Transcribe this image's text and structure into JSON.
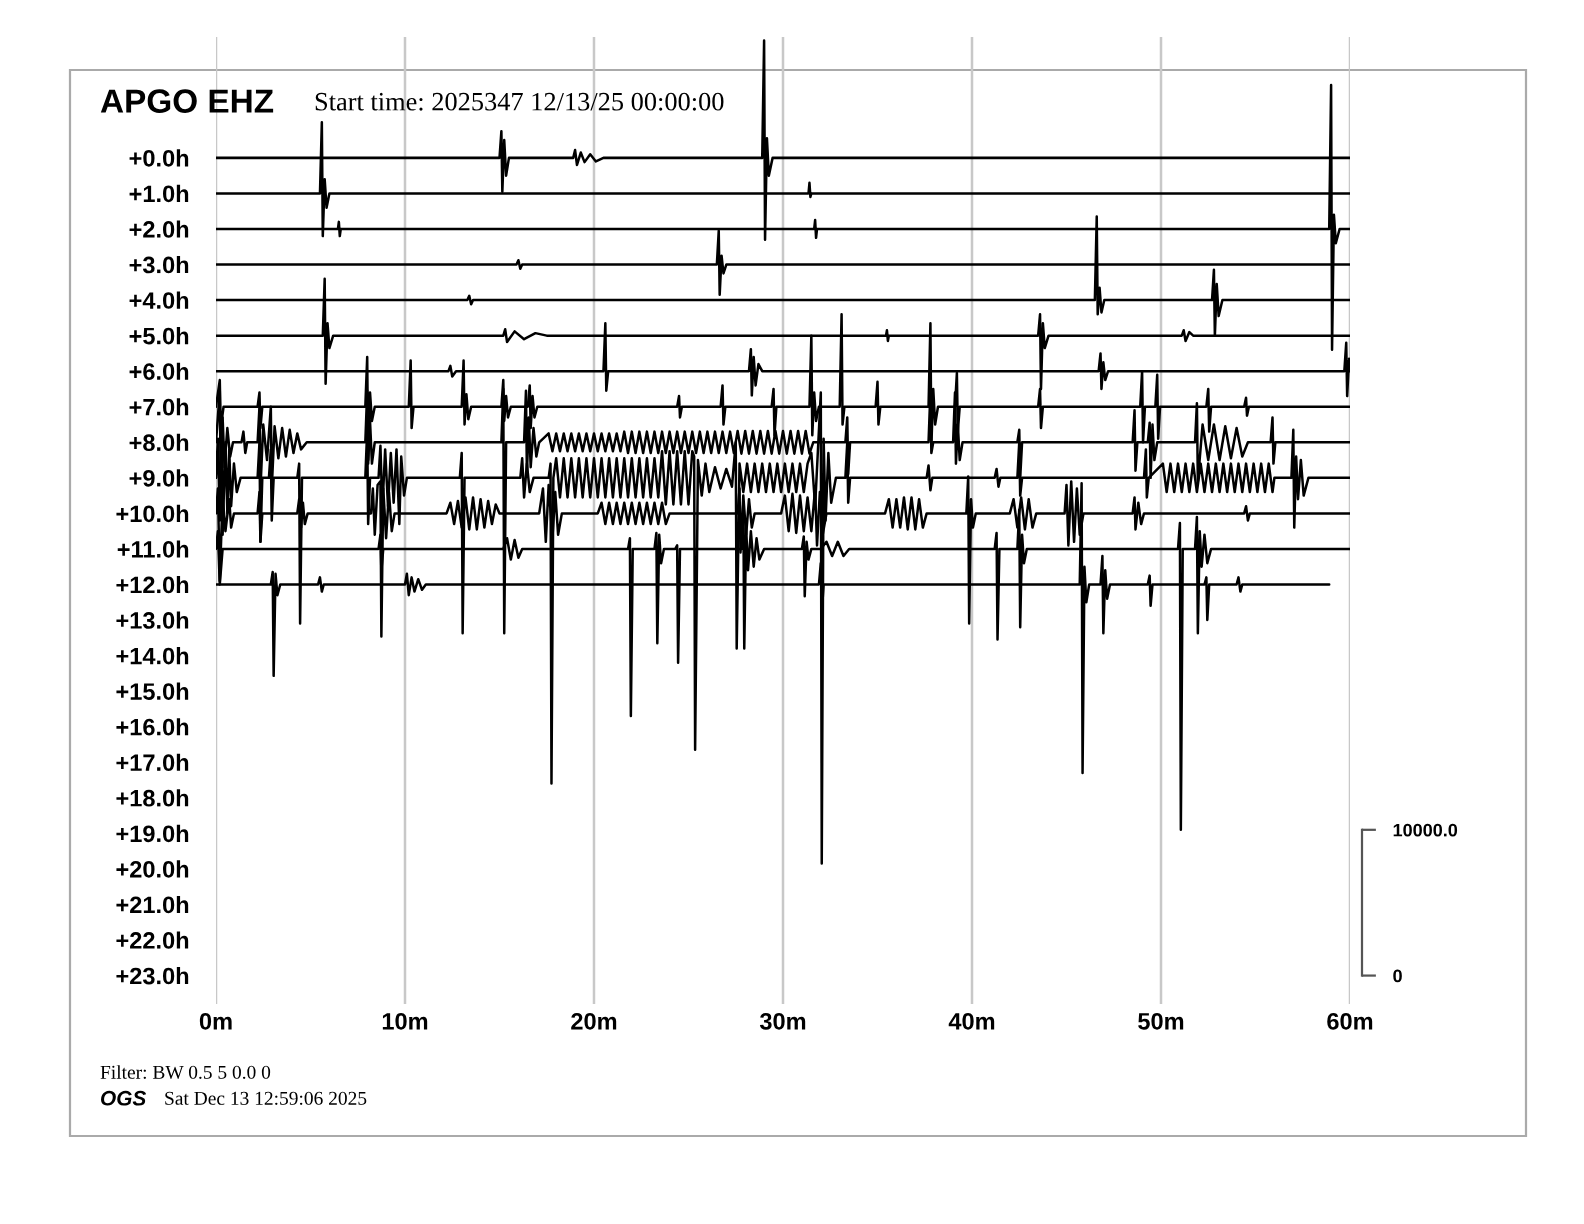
{
  "chart_data": {
    "type": "line",
    "title": "APGO EHZ",
    "subtitle": "Start time: 2025347 12/13/25 00:00:00",
    "annotations": [
      "Filter: BW 0.5 5 0.0 0",
      "OGS",
      "Sat Dec 13 12:59:06 2025"
    ],
    "xlim": [
      0,
      60
    ],
    "xticks": [
      {
        "value": 0,
        "label": "0m"
      },
      {
        "value": 10,
        "label": "10m"
      },
      {
        "value": 20,
        "label": "20m"
      },
      {
        "value": 30,
        "label": "30m"
      },
      {
        "value": 40,
        "label": "40m"
      },
      {
        "value": 50,
        "label": "50m"
      },
      {
        "value": 60,
        "label": "60m"
      }
    ],
    "ylim": [
      23.8,
      -3.4
    ],
    "yticks": [
      {
        "value": 0,
        "label": "+0.0h"
      },
      {
        "value": 1,
        "label": "+1.0h"
      },
      {
        "value": 2,
        "label": "+2.0h"
      },
      {
        "value": 3,
        "label": "+3.0h"
      },
      {
        "value": 4,
        "label": "+4.0h"
      },
      {
        "value": 5,
        "label": "+5.0h"
      },
      {
        "value": 6,
        "label": "+6.0h"
      },
      {
        "value": 7,
        "label": "+7.0h"
      },
      {
        "value": 8,
        "label": "+8.0h"
      },
      {
        "value": 9,
        "label": "+9.0h"
      },
      {
        "value": 10,
        "label": "+10.0h"
      },
      {
        "value": 11,
        "label": "+11.0h"
      },
      {
        "value": 12,
        "label": "+12.0h"
      },
      {
        "value": 13,
        "label": "+13.0h"
      },
      {
        "value": 14,
        "label": "+14.0h"
      },
      {
        "value": 15,
        "label": "+15.0h"
      },
      {
        "value": 16,
        "label": "+16.0h"
      },
      {
        "value": 17,
        "label": "+17.0h"
      },
      {
        "value": 18,
        "label": "+18.0h"
      },
      {
        "value": 19,
        "label": "+19.0h"
      },
      {
        "value": 20,
        "label": "+20.0h"
      },
      {
        "value": 21,
        "label": "+21.0h"
      },
      {
        "value": 22,
        "label": "+22.0h"
      },
      {
        "value": 23,
        "label": "+23.0h"
      }
    ],
    "y2lim": [
      -1950,
      64390
    ],
    "y2ticks": [
      0,
      {
        "value": 10000,
        "label": "10000.0"
      }
    ],
    "grid": "x",
    "series": [
      {
        "color": "#000000",
        "x": [
          0,
          15.0,
          15.1,
          15.15,
          15.25,
          15.35,
          15.5,
          18.9,
          19.0,
          19.1,
          19.3,
          19.5,
          19.8,
          20.1,
          20.5,
          28.9,
          29.0,
          29.05,
          29.15,
          29.25,
          29.45,
          60
        ],
        "values": [
          0,
          0,
          -0.75,
          0.95,
          -0.5,
          0.5,
          0,
          0,
          -0.22,
          0.2,
          -0.15,
          0.12,
          -0.1,
          0.1,
          0,
          0,
          -3.3,
          2.3,
          -0.55,
          0.5,
          0,
          0
        ]
      },
      {
        "color": "#000000",
        "x": [
          0,
          5.5,
          5.6,
          5.65,
          5.75,
          5.85,
          6.0,
          31.35,
          31.4,
          31.45,
          31.5,
          60
        ],
        "values": [
          1,
          1,
          -1.0,
          2.2,
          0.6,
          1.4,
          1,
          1,
          0.7,
          1.1,
          1,
          1
        ]
      },
      {
        "color": "#000000",
        "x": [
          0,
          6.45,
          6.5,
          6.55,
          6.6,
          31.65,
          31.7,
          31.75,
          31.8,
          58.9,
          59.0,
          59.05,
          59.15,
          59.25,
          59.45,
          60
        ],
        "values": [
          2,
          2,
          1.8,
          2.2,
          2,
          2,
          1.75,
          2.25,
          2,
          2,
          -2.05,
          5.4,
          1.6,
          2.4,
          2,
          2
        ]
      },
      {
        "color": "#000000",
        "x": [
          0,
          15.9,
          16.0,
          16.1,
          16.2,
          26.5,
          26.6,
          26.65,
          26.75,
          26.85,
          27.0,
          60
        ],
        "values": [
          3,
          3,
          2.88,
          3.12,
          3,
          3,
          2.05,
          3.85,
          2.75,
          3.25,
          3,
          3
        ]
      },
      {
        "color": "#000000",
        "x": [
          0,
          13.3,
          13.4,
          13.5,
          13.6,
          46.5,
          46.6,
          46.65,
          46.75,
          46.85,
          47.0,
          52.7,
          52.8,
          52.85,
          52.95,
          53.05,
          53.25,
          60
        ],
        "values": [
          4,
          4,
          3.88,
          4.12,
          4,
          4,
          1.65,
          4.4,
          3.65,
          4.35,
          4,
          4,
          3.15,
          5.0,
          3.55,
          4.45,
          4,
          4
        ]
      },
      {
        "color": "#000000",
        "x": [
          0,
          5.65,
          5.75,
          5.8,
          5.9,
          6.0,
          6.2,
          15.2,
          15.3,
          15.4,
          15.8,
          16.3,
          16.9,
          17.5,
          35.45,
          35.5,
          35.55,
          35.6,
          43.5,
          43.6,
          43.65,
          43.75,
          43.85,
          44.05,
          51.1,
          51.2,
          51.3,
          51.5,
          51.7,
          60
        ],
        "values": [
          5,
          5,
          3.4,
          6.35,
          4.65,
          5.35,
          5,
          5,
          4.82,
          5.18,
          4.88,
          5.1,
          4.93,
          5,
          5,
          4.85,
          5.15,
          5,
          5,
          4.4,
          6.5,
          4.65,
          5.35,
          5,
          5,
          4.85,
          5.15,
          4.9,
          5,
          5
        ]
      },
      {
        "color": "#000000",
        "x": [
          0,
          12.3,
          12.4,
          12.5,
          12.7,
          20.5,
          20.6,
          20.65,
          20.75,
          28.2,
          28.3,
          28.35,
          28.45,
          28.55,
          28.7,
          28.9,
          46.7,
          46.8,
          46.85,
          46.95,
          47.05,
          47.2,
          59.7,
          59.8,
          59.85,
          59.95,
          60
        ],
        "values": [
          6,
          6,
          5.85,
          6.15,
          6,
          6,
          4.65,
          6.55,
          6,
          6,
          5.38,
          6.68,
          5.6,
          6.4,
          5.8,
          6,
          6,
          5.5,
          6.5,
          5.75,
          6.25,
          6,
          6,
          5.2,
          6.7,
          5.65,
          6
        ]
      },
      {
        "color": "#000000",
        "x": [
          0,
          0.2,
          0.25,
          0.4,
          2.2,
          2.3,
          2.35,
          2.45,
          7.9,
          8.0,
          8.05,
          8.15,
          8.25,
          8.4,
          10.2,
          10.3,
          10.35,
          10.45,
          13.0,
          13.1,
          13.15,
          13.25,
          13.35,
          13.5,
          15.1,
          15.2,
          15.25,
          15.35,
          15.45,
          15.6,
          16.5,
          16.6,
          16.65,
          16.75,
          16.85,
          17.0,
          24.4,
          24.5,
          24.55,
          24.65,
          26.7,
          26.8,
          26.85,
          26.95,
          29.4,
          29.5,
          29.55,
          29.65,
          31.4,
          31.5,
          31.55,
          31.65,
          31.75,
          31.9,
          33.0,
          33.1,
          33.15,
          33.25,
          34.9,
          35.0,
          35.05,
          35.15,
          37.7,
          37.8,
          37.85,
          37.95,
          38.05,
          38.2,
          39.1,
          39.2,
          39.25,
          39.35,
          43.5,
          43.6,
          43.65,
          43.75,
          48.9,
          49.0,
          49.05,
          49.15,
          49.7,
          49.8,
          49.85,
          49.95,
          52.4,
          52.5,
          52.55,
          52.65,
          54.4,
          54.5,
          54.55,
          54.65,
          60
        ],
        "values": [
          7,
          6.25,
          7.6,
          7,
          7,
          6.6,
          7.6,
          7,
          7,
          5.6,
          8.5,
          6.6,
          7.4,
          7,
          7,
          5.7,
          7.6,
          7,
          7,
          5.7,
          7.5,
          6.65,
          7.35,
          7,
          7,
          6.25,
          7.4,
          6.7,
          7.3,
          7,
          7,
          6.4,
          7.6,
          6.7,
          7.3,
          7,
          7,
          6.7,
          7.3,
          7,
          7,
          6.4,
          7.5,
          7,
          7,
          6.5,
          7.8,
          7,
          7,
          5.0,
          7.8,
          6.6,
          7.4,
          7,
          7,
          4.4,
          7.5,
          7,
          7,
          6.3,
          7.5,
          7,
          7,
          4.65,
          8.1,
          6.5,
          7.5,
          7,
          7,
          6.05,
          7.7,
          7,
          7,
          6.5,
          7.6,
          7,
          7,
          6.0,
          8.0,
          7,
          7,
          6.1,
          7.9,
          7,
          7,
          6.5,
          7.7,
          7,
          7,
          6.75,
          7.25,
          7,
          7
        ]
      },
      {
        "color": "#000000",
        "x": [
          0,
          0.2,
          0.25,
          0.35,
          0.45,
          0.6,
          0.75,
          0.9,
          1.35,
          1.45,
          1.55,
          1.65,
          2.2,
          2.3,
          2.35,
          2.5,
          2.7,
          2.9,
          2.95,
          3.1,
          3.3,
          3.5,
          3.7,
          3.9,
          4.1,
          4.3,
          4.5,
          4.8,
          7.9,
          8.0,
          8.05,
          8.15,
          8.25,
          8.4,
          15.1,
          15.2,
          15.25,
          15.35,
          16.3,
          16.4,
          16.45,
          16.55,
          16.65,
          16.8,
          16.95,
          17.1,
          17.6,
          17.8,
          18.0,
          18.2,
          18.4,
          18.6,
          18.8,
          19.0,
          19.2,
          19.4,
          19.6,
          19.8,
          20.0,
          20.2,
          20.4,
          20.6,
          20.8,
          21.0,
          21.2,
          21.4,
          21.6,
          21.8,
          22.0,
          22.2,
          22.4,
          22.6,
          22.8,
          23.0,
          23.2,
          23.4,
          23.6,
          23.8,
          24.0,
          24.2,
          24.4,
          24.6,
          24.8,
          25.0,
          25.2,
          25.4,
          25.6,
          25.8,
          26.0,
          26.2,
          26.4,
          26.6,
          26.8,
          27.0,
          27.2,
          27.4,
          27.6,
          27.8,
          28.0,
          28.2,
          28.4,
          28.6,
          28.8,
          29.0,
          29.2,
          29.4,
          29.6,
          29.8,
          30.0,
          30.2,
          30.4,
          30.6,
          30.8,
          31.0,
          31.2,
          31.4,
          31.6,
          33.3,
          33.4,
          33.45,
          33.55,
          37.7,
          37.8,
          37.85,
          37.95,
          39.0,
          39.1,
          39.15,
          39.25,
          39.35,
          39.5,
          42.4,
          42.5,
          42.55,
          42.65,
          48.5,
          48.6,
          48.65,
          48.75,
          49.3,
          49.4,
          49.45,
          49.55,
          49.65,
          49.8,
          51.8,
          51.9,
          51.95,
          52.2,
          52.5,
          52.8,
          53.1,
          53.4,
          53.7,
          54.0,
          54.3,
          54.6,
          55.8,
          55.9,
          55.95,
          56.05,
          60
        ],
        "values": [
          8,
          6.55,
          9.3,
          7.3,
          8.7,
          7.6,
          8.4,
          8,
          8,
          7.7,
          8.3,
          8,
          8,
          7.0,
          9.35,
          7.5,
          8.5,
          7.0,
          9.3,
          7.55,
          8.45,
          7.6,
          8.4,
          7.65,
          8.3,
          7.75,
          8.2,
          8,
          8,
          6.55,
          8.6,
          7.4,
          8.6,
          8,
          8,
          6.5,
          13.37,
          8,
          8,
          6.55,
          8.9,
          7.3,
          8.7,
          7.6,
          8.4,
          8,
          7.75,
          8.25,
          7.75,
          8.25,
          7.75,
          8.25,
          7.75,
          8.25,
          7.75,
          8.25,
          7.75,
          8.25,
          7.75,
          8.25,
          7.75,
          8.25,
          7.75,
          8.25,
          7.75,
          8.25,
          7.7,
          8.3,
          7.7,
          8.3,
          7.7,
          8.3,
          7.7,
          8.3,
          7.7,
          8.3,
          7.7,
          8.3,
          7.7,
          8.3,
          7.7,
          8.3,
          7.7,
          8.3,
          7.7,
          8.3,
          7.7,
          8.3,
          7.7,
          8.3,
          7.7,
          8.3,
          7.7,
          8.3,
          7.7,
          8.3,
          7.68,
          8.32,
          7.68,
          8.32,
          7.68,
          8.32,
          7.68,
          8.32,
          7.68,
          8.32,
          7.68,
          8.32,
          7.68,
          8.32,
          7.68,
          8.32,
          7.68,
          8.32,
          7.68,
          8.32,
          8,
          8,
          7.3,
          8.9,
          8,
          8,
          6.55,
          8.3,
          8,
          8,
          6.6,
          8.6,
          7.5,
          8.5,
          8,
          8,
          7.65,
          9.0,
          8,
          8,
          7.1,
          8.8,
          8,
          8,
          7.45,
          9.0,
          7.5,
          8.5,
          8,
          8,
          6.9,
          9.1,
          7.5,
          8.5,
          7.5,
          8.5,
          7.55,
          8.45,
          7.6,
          8.4,
          8,
          8,
          7.3,
          8.6,
          8,
          8
        ]
      },
      {
        "color": "#000000",
        "x": [
          0,
          0.1,
          0.2,
          0.3,
          0.35,
          0.5,
          0.6,
          0.7,
          0.8,
          0.95,
          1.1,
          1.3,
          2.2,
          2.3,
          2.35,
          2.45,
          2.8,
          2.9,
          2.95,
          3.05,
          4.3,
          4.4,
          4.45,
          4.55,
          7.9,
          8.0,
          8.05,
          8.15,
          8.6,
          8.7,
          8.8,
          8.95,
          9.1,
          9.25,
          9.4,
          9.55,
          9.7,
          9.8,
          9.95,
          10.1,
          12.9,
          13.0,
          13.05,
          13.15,
          16.1,
          16.2,
          16.3,
          16.45,
          16.6,
          16.8,
          17.6,
          17.7,
          17.75,
          17.85,
          18.0,
          18.2,
          18.4,
          18.6,
          18.8,
          19.0,
          19.2,
          19.4,
          19.6,
          19.8,
          20.0,
          20.2,
          20.4,
          20.6,
          20.8,
          21.0,
          21.2,
          21.4,
          21.6,
          21.8,
          22.0,
          22.2,
          22.4,
          22.6,
          22.8,
          23.0,
          23.2,
          23.4,
          23.6,
          23.8,
          24.0,
          24.2,
          24.4,
          24.6,
          24.8,
          25.0,
          25.2,
          25.3,
          25.35,
          25.5,
          25.7,
          25.9,
          26.1,
          26.4,
          26.7,
          27.0,
          27.3,
          27.5,
          27.55,
          27.7,
          27.9,
          28.1,
          28.3,
          28.5,
          28.7,
          28.9,
          29.1,
          29.3,
          29.5,
          29.7,
          29.9,
          30.1,
          30.3,
          30.5,
          30.7,
          30.9,
          31.1,
          31.3,
          31.5,
          31.7,
          32.0,
          32.05,
          32.15,
          32.25,
          32.4,
          32.55,
          32.8,
          33.3,
          33.4,
          33.45,
          33.55,
          37.6,
          37.7,
          37.8,
          37.9,
          41.2,
          41.3,
          41.4,
          41.5,
          42.4,
          42.5,
          42.55,
          42.65,
          49.1,
          49.2,
          49.25,
          49.35,
          50.1,
          50.3,
          50.5,
          50.7,
          50.9,
          51.1,
          51.3,
          51.5,
          51.7,
          51.9,
          52.1,
          52.3,
          52.5,
          52.7,
          52.9,
          53.1,
          53.3,
          53.5,
          53.7,
          53.9,
          54.1,
          54.3,
          54.5,
          54.7,
          54.9,
          55.1,
          55.3,
          55.5,
          55.7,
          55.9,
          56.0,
          56.9,
          57.0,
          57.05,
          57.15,
          57.25,
          57.4,
          57.55,
          57.8,
          60
        ],
        "values": [
          9,
          7.9,
          10.2,
          7.6,
          10.6,
          8.0,
          10.0,
          8.2,
          9.8,
          8.6,
          9.4,
          9,
          9,
          8.0,
          10.8,
          9,
          9,
          8.2,
          10.2,
          9,
          9,
          8.6,
          13.1,
          9,
          9,
          7.65,
          10.3,
          9,
          9,
          8.1,
          9.9,
          8.2,
          9.8,
          8.3,
          9.7,
          8.2,
          10.3,
          8.4,
          9.5,
          9,
          9,
          8.3,
          13.37,
          9,
          9,
          8.45,
          9.55,
          8.6,
          9.4,
          9,
          9,
          8.6,
          17.6,
          9,
          8.45,
          9.55,
          8.45,
          9.55,
          8.45,
          9.55,
          8.45,
          9.55,
          8.45,
          9.55,
          8.45,
          9.55,
          8.45,
          9.55,
          8.45,
          9.55,
          8.45,
          9.55,
          8.45,
          9.55,
          8.45,
          9.55,
          8.45,
          9.55,
          8.45,
          9.55,
          8.45,
          9.55,
          8.25,
          9.75,
          8.25,
          9.75,
          8.25,
          9.75,
          8.25,
          9.75,
          8.25,
          8.4,
          16.65,
          8.5,
          9.5,
          8.6,
          9.4,
          8.7,
          9.3,
          8.75,
          9.25,
          8.0,
          13.8,
          8.6,
          9.4,
          8.6,
          9.4,
          8.6,
          9.4,
          8.6,
          9.4,
          8.6,
          9.4,
          8.6,
          9.4,
          8.6,
          9.4,
          8.6,
          9.4,
          8.6,
          9.4,
          8.6,
          8.3,
          9.8,
          6.6,
          19.85,
          7.9,
          10.2,
          8.3,
          9.7,
          9,
          9,
          8.0,
          9.7,
          9,
          9,
          8.65,
          9.35,
          9,
          9,
          8.75,
          9.25,
          9,
          9,
          8.0,
          9.5,
          9,
          9,
          8.2,
          9.55,
          9,
          8.6,
          9.4,
          8.6,
          9.4,
          8.6,
          9.4,
          8.6,
          9.4,
          8.6,
          9.4,
          8.6,
          9.4,
          8.6,
          9.4,
          8.6,
          9.4,
          8.6,
          9.4,
          8.6,
          9.4,
          8.6,
          9.4,
          8.6,
          9.4,
          8.6,
          9.4,
          8.6,
          9.4,
          8.6,
          9.4,
          9,
          9,
          7.65,
          10.4,
          8.4,
          9.6,
          8.5,
          9.5,
          9,
          9
        ]
      },
      {
        "color": "#000000",
        "x": [
          0,
          0.1,
          0.2,
          0.35,
          0.5,
          0.7,
          0.8,
          0.95,
          2.2,
          2.3,
          2.35,
          2.45,
          4.3,
          4.4,
          4.5,
          4.6,
          4.7,
          4.85,
          8.2,
          8.3,
          8.4,
          8.55,
          8.7,
          8.75,
          8.85,
          9.0,
          9.15,
          9.3,
          9.45,
          12.2,
          12.4,
          12.6,
          12.8,
          13.0,
          13.2,
          13.4,
          13.6,
          13.8,
          14.0,
          14.2,
          14.4,
          14.6,
          14.8,
          15.0,
          17.1,
          17.3,
          17.45,
          17.6,
          17.8,
          17.95,
          18.1,
          18.3,
          20.2,
          20.4,
          20.6,
          20.8,
          21.0,
          21.2,
          21.4,
          21.6,
          21.8,
          22.0,
          22.2,
          22.4,
          22.6,
          22.8,
          23.0,
          23.2,
          23.4,
          23.6,
          23.8,
          24.0,
          27.6,
          27.7,
          27.75,
          27.9,
          28.05,
          28.2,
          28.35,
          28.5,
          29.9,
          30.1,
          30.3,
          30.5,
          30.7,
          30.9,
          31.1,
          31.3,
          31.5,
          31.7,
          31.8,
          31.95,
          32.1,
          32.3,
          35.4,
          35.6,
          35.8,
          36.0,
          36.2,
          36.4,
          36.6,
          36.8,
          37.0,
          37.2,
          37.4,
          37.6,
          39.7,
          39.8,
          39.85,
          39.95,
          40.05,
          40.2,
          42.0,
          42.2,
          42.4,
          42.6,
          42.8,
          43.0,
          43.2,
          43.4,
          44.9,
          45.0,
          45.1,
          45.25,
          45.4,
          45.55,
          45.7,
          45.9,
          48.5,
          48.6,
          48.65,
          48.8,
          48.95,
          49.1,
          54.4,
          54.5,
          54.6,
          54.7,
          60
        ],
        "values": [
          10,
          9.3,
          11.9,
          9.5,
          10.5,
          9.6,
          10.4,
          10,
          10,
          9.4,
          10.8,
          10,
          10,
          9.6,
          10.4,
          9.7,
          10.3,
          10,
          10,
          9.3,
          10.6,
          9.2,
          9.1,
          13.46,
          9.3,
          10.7,
          9.4,
          10.5,
          10,
          10,
          9.7,
          10.3,
          9.65,
          10.4,
          9.55,
          10.45,
          9.55,
          10.45,
          9.6,
          10.4,
          9.65,
          10.3,
          9.75,
          10,
          10,
          9.3,
          10.8,
          9.2,
          10.7,
          9.4,
          10.6,
          10,
          10,
          9.7,
          10.3,
          9.7,
          10.3,
          9.7,
          10.3,
          9.7,
          10.3,
          9.7,
          10.3,
          9.7,
          10.3,
          9.7,
          10.3,
          9.7,
          10.3,
          9.7,
          10.3,
          10,
          10,
          9.3,
          11.1,
          9.5,
          10.6,
          9.6,
          10.4,
          10,
          10,
          9.5,
          10.5,
          9.45,
          10.55,
          9.5,
          10.5,
          9.55,
          10.5,
          9.3,
          10.9,
          9.4,
          10.6,
          10,
          10,
          9.6,
          10.4,
          9.6,
          10.4,
          9.55,
          10.45,
          9.55,
          10.45,
          9.6,
          10.4,
          10,
          10,
          8.96,
          13.1,
          9.6,
          10.4,
          10,
          10,
          9.6,
          10.4,
          9.55,
          10.45,
          9.6,
          10.4,
          10,
          10,
          9.2,
          10.9,
          9.1,
          10.8,
          9.3,
          10.6,
          10,
          10,
          9.55,
          10.45,
          9.7,
          10.3,
          10,
          10,
          9.8,
          10.2,
          10,
          10
        ]
      },
      {
        "color": "#000000",
        "x": [
          0,
          0.1,
          0.2,
          0.35,
          8.6,
          8.7,
          8.75,
          8.85,
          15.2,
          15.4,
          15.6,
          15.8,
          16.0,
          16.2,
          21.8,
          21.9,
          21.95,
          22.05,
          23.2,
          23.3,
          23.35,
          23.45,
          23.55,
          23.7,
          24.3,
          24.4,
          24.45,
          24.55,
          27.8,
          27.9,
          27.95,
          28.05,
          28.15,
          28.3,
          28.45,
          28.6,
          28.75,
          29.0,
          31.0,
          31.1,
          31.15,
          31.25,
          31.35,
          31.5,
          32.0,
          32.3,
          32.6,
          32.9,
          33.2,
          33.5,
          41.2,
          41.3,
          41.35,
          41.45,
          42.4,
          42.5,
          42.55,
          42.65,
          42.75,
          42.9,
          50.9,
          51.0,
          51.05,
          51.15,
          51.8,
          51.9,
          51.95,
          52.05,
          52.15,
          52.3,
          52.45,
          52.65,
          60
        ],
        "values": [
          11,
          10.5,
          12.0,
          11,
          11,
          10.6,
          11.6,
          11,
          11,
          10.7,
          11.3,
          10.75,
          11.25,
          11,
          11,
          10.7,
          15.7,
          11,
          11,
          10.55,
          13.65,
          10.6,
          11.4,
          11,
          11,
          10.9,
          14.2,
          11,
          11,
          9.71,
          13.8,
          10.4,
          11.6,
          10.5,
          11.5,
          10.7,
          11.3,
          11,
          11,
          10.65,
          12.33,
          10.8,
          11.3,
          11,
          11,
          10.8,
          11.2,
          10.8,
          11.2,
          11,
          11,
          10.55,
          13.55,
          11,
          11,
          9.9,
          13.2,
          10.6,
          11.4,
          11,
          11,
          10.27,
          18.9,
          11,
          11,
          10.1,
          13.37,
          10.5,
          11.5,
          10.6,
          11.4,
          11,
          11
        ]
      },
      {
        "color": "#000000",
        "x": [
          0,
          2.9,
          3.0,
          3.05,
          3.15,
          3.25,
          3.4,
          5.4,
          5.5,
          5.6,
          5.7,
          10.0,
          10.1,
          10.2,
          10.35,
          10.5,
          10.7,
          10.9,
          11.1,
          31.9,
          32.0,
          32.05,
          32.15,
          45.7,
          45.8,
          45.85,
          45.95,
          46.05,
          46.2,
          46.8,
          46.9,
          46.95,
          47.05,
          47.15,
          47.3,
          49.3,
          49.4,
          49.45,
          49.55,
          52.3,
          52.4,
          52.45,
          52.55,
          54.0,
          54.1,
          54.2,
          54.3,
          58.9
        ],
        "values": [
          12,
          12,
          11.65,
          14.57,
          11.7,
          12.3,
          12,
          12,
          11.8,
          12.2,
          12,
          12,
          11.7,
          12.3,
          11.8,
          12.2,
          11.85,
          12.15,
          12,
          12,
          11.4,
          12.8,
          12,
          12,
          9.15,
          17.3,
          11.5,
          12.5,
          12,
          12,
          11.2,
          13.37,
          11.6,
          12.4,
          12,
          12,
          11.75,
          12.6,
          12,
          12,
          11.8,
          13.0,
          12,
          12,
          11.8,
          12.2,
          12,
          12
        ]
      }
    ]
  }
}
